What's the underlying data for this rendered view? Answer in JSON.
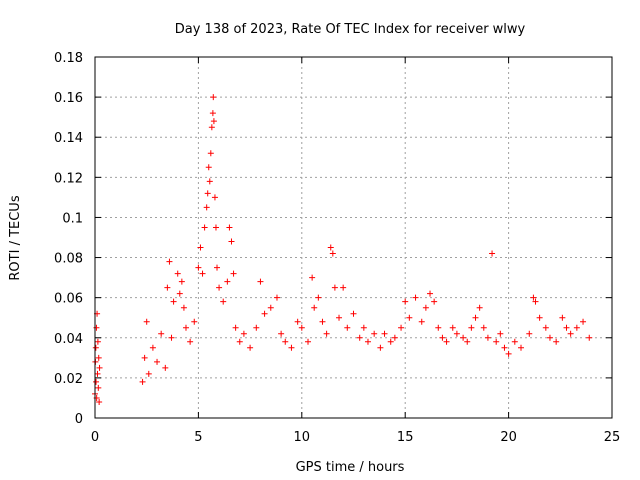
{
  "chart_data": {
    "type": "scatter",
    "title": "Day 138 of 2023, Rate Of TEC Index for receiver wlwy",
    "xlabel": "GPS time / hours",
    "ylabel": "ROTI / TECUs",
    "xlim": [
      0,
      25
    ],
    "ylim": [
      0,
      0.18
    ],
    "x_ticks": [
      0,
      5,
      10,
      15,
      20,
      25
    ],
    "x_tick_labels": [
      "0",
      "5",
      "10",
      "15",
      "20",
      "25"
    ],
    "y_ticks": [
      0,
      0.02,
      0.04,
      0.06,
      0.08,
      0.1,
      0.12,
      0.14,
      0.16,
      0.18
    ],
    "y_tick_labels": [
      "0",
      "0.02",
      "0.04",
      "0.06",
      "0.08",
      "0.1",
      "0.12",
      "0.14",
      "0.16",
      "0.18"
    ],
    "grid": true,
    "marker": "plus",
    "color": "#ff0000",
    "series": [
      {
        "points": [
          [
            0.0,
            0.012
          ],
          [
            0.02,
            0.028
          ],
          [
            0.04,
            0.035
          ],
          [
            0.05,
            0.018
          ],
          [
            0.07,
            0.045
          ],
          [
            0.08,
            0.01
          ],
          [
            0.1,
            0.052
          ],
          [
            0.12,
            0.022
          ],
          [
            0.14,
            0.038
          ],
          [
            0.16,
            0.015
          ],
          [
            0.18,
            0.03
          ],
          [
            0.2,
            0.008
          ],
          [
            0.22,
            0.025
          ],
          [
            2.3,
            0.018
          ],
          [
            2.4,
            0.03
          ],
          [
            2.5,
            0.048
          ],
          [
            2.6,
            0.022
          ],
          [
            2.8,
            0.035
          ],
          [
            3.0,
            0.028
          ],
          [
            3.2,
            0.042
          ],
          [
            3.4,
            0.025
          ],
          [
            3.5,
            0.065
          ],
          [
            3.6,
            0.078
          ],
          [
            3.7,
            0.04
          ],
          [
            3.8,
            0.058
          ],
          [
            4.0,
            0.072
          ],
          [
            4.1,
            0.062
          ],
          [
            4.2,
            0.068
          ],
          [
            4.3,
            0.055
          ],
          [
            4.4,
            0.045
          ],
          [
            4.6,
            0.038
          ],
          [
            4.8,
            0.048
          ],
          [
            5.0,
            0.075
          ],
          [
            5.1,
            0.085
          ],
          [
            5.2,
            0.072
          ],
          [
            5.3,
            0.095
          ],
          [
            5.4,
            0.105
          ],
          [
            5.45,
            0.112
          ],
          [
            5.5,
            0.125
          ],
          [
            5.55,
            0.118
          ],
          [
            5.6,
            0.132
          ],
          [
            5.65,
            0.145
          ],
          [
            5.7,
            0.152
          ],
          [
            5.72,
            0.16
          ],
          [
            5.75,
            0.148
          ],
          [
            5.8,
            0.11
          ],
          [
            5.85,
            0.095
          ],
          [
            5.9,
            0.075
          ],
          [
            6.0,
            0.065
          ],
          [
            6.2,
            0.058
          ],
          [
            6.4,
            0.068
          ],
          [
            6.5,
            0.095
          ],
          [
            6.6,
            0.088
          ],
          [
            6.7,
            0.072
          ],
          [
            6.8,
            0.045
          ],
          [
            7.0,
            0.038
          ],
          [
            7.2,
            0.042
          ],
          [
            7.5,
            0.035
          ],
          [
            7.8,
            0.045
          ],
          [
            8.0,
            0.068
          ],
          [
            8.2,
            0.052
          ],
          [
            8.5,
            0.055
          ],
          [
            8.8,
            0.06
          ],
          [
            9.0,
            0.042
          ],
          [
            9.2,
            0.038
          ],
          [
            9.5,
            0.035
          ],
          [
            9.8,
            0.048
          ],
          [
            10.0,
            0.045
          ],
          [
            10.3,
            0.038
          ],
          [
            10.5,
            0.07
          ],
          [
            10.6,
            0.055
          ],
          [
            10.8,
            0.06
          ],
          [
            11.0,
            0.048
          ],
          [
            11.2,
            0.042
          ],
          [
            11.4,
            0.085
          ],
          [
            11.5,
            0.082
          ],
          [
            11.6,
            0.065
          ],
          [
            11.8,
            0.05
          ],
          [
            12.0,
            0.065
          ],
          [
            12.2,
            0.045
          ],
          [
            12.5,
            0.052
          ],
          [
            12.8,
            0.04
          ],
          [
            13.0,
            0.045
          ],
          [
            13.2,
            0.038
          ],
          [
            13.5,
            0.042
          ],
          [
            13.8,
            0.035
          ],
          [
            14.0,
            0.042
          ],
          [
            14.3,
            0.038
          ],
          [
            14.5,
            0.04
          ],
          [
            14.8,
            0.045
          ],
          [
            15.0,
            0.058
          ],
          [
            15.2,
            0.05
          ],
          [
            15.5,
            0.06
          ],
          [
            15.8,
            0.048
          ],
          [
            16.0,
            0.055
          ],
          [
            16.2,
            0.062
          ],
          [
            16.4,
            0.058
          ],
          [
            16.6,
            0.045
          ],
          [
            16.8,
            0.04
          ],
          [
            17.0,
            0.038
          ],
          [
            17.3,
            0.045
          ],
          [
            17.5,
            0.042
          ],
          [
            17.8,
            0.04
          ],
          [
            18.0,
            0.038
          ],
          [
            18.2,
            0.045
          ],
          [
            18.4,
            0.05
          ],
          [
            18.6,
            0.055
          ],
          [
            18.8,
            0.045
          ],
          [
            19.0,
            0.04
          ],
          [
            19.2,
            0.082
          ],
          [
            19.4,
            0.038
          ],
          [
            19.6,
            0.042
          ],
          [
            19.8,
            0.035
          ],
          [
            20.0,
            0.032
          ],
          [
            20.3,
            0.038
          ],
          [
            20.6,
            0.035
          ],
          [
            21.0,
            0.042
          ],
          [
            21.2,
            0.06
          ],
          [
            21.3,
            0.058
          ],
          [
            21.5,
            0.05
          ],
          [
            21.8,
            0.045
          ],
          [
            22.0,
            0.04
          ],
          [
            22.3,
            0.038
          ],
          [
            22.6,
            0.05
          ],
          [
            22.8,
            0.045
          ],
          [
            23.0,
            0.042
          ],
          [
            23.3,
            0.045
          ],
          [
            23.6,
            0.048
          ],
          [
            23.9,
            0.04
          ]
        ]
      }
    ]
  }
}
